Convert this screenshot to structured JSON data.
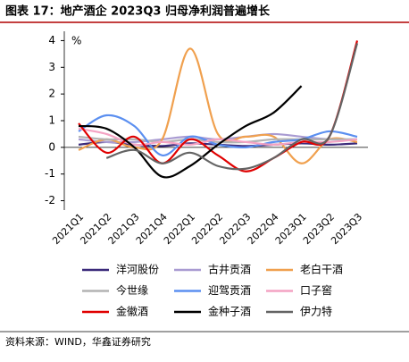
{
  "chart_data": {
    "type": "line",
    "title": "图表 17：地产酒企 2023Q3 归母净利润普遍增长",
    "unit_label": "%",
    "source": "资料来源：WIND，华鑫证券研究",
    "categories": [
      "2021Q1",
      "2021Q2",
      "2021Q3",
      "2021Q4",
      "2022Q1",
      "2022Q2",
      "2022Q3",
      "2022Q4",
      "2023Q1",
      "2023Q2",
      "2023Q3"
    ],
    "ylim": [
      -2.35,
      4.35
    ],
    "yticks": [
      -2,
      -1,
      0,
      1,
      2,
      3,
      4
    ],
    "series": [
      {
        "name": "洋河股份",
        "color": "#3b2a7a",
        "values": [
          0.1,
          0.2,
          0.1,
          0.05,
          0.15,
          0.1,
          0.05,
          0.1,
          0.15,
          0.1,
          0.15
        ]
      },
      {
        "name": "古井贡酒",
        "color": "#a99bd2",
        "values": [
          0.3,
          0.2,
          0.2,
          0.3,
          0.4,
          0.3,
          0.4,
          0.5,
          0.4,
          0.3,
          0.3
        ]
      },
      {
        "name": "老白干酒",
        "color": "#f0a04e",
        "values": [
          -0.1,
          0.3,
          0.0,
          0.3,
          3.7,
          0.5,
          0.4,
          0.4,
          -0.6,
          0.3,
          0.2
        ]
      },
      {
        "name": "今世缘",
        "color": "#b3b3b3",
        "values": [
          0.4,
          0.3,
          0.3,
          0.2,
          0.3,
          0.2,
          0.2,
          0.3,
          0.3,
          0.3,
          0.3
        ]
      },
      {
        "name": "迎驾贡酒",
        "color": "#5b8ff0",
        "values": [
          0.6,
          1.2,
          0.8,
          -0.3,
          0.4,
          0.1,
          0.0,
          0.2,
          0.3,
          0.6,
          0.4
        ]
      },
      {
        "name": "口子窖",
        "color": "#f4a3c3",
        "values": [
          0.7,
          0.5,
          0.1,
          0.2,
          0.1,
          0.3,
          0.2,
          0.1,
          0.2,
          0.2,
          0.3
        ]
      },
      {
        "name": "金徽酒",
        "color": "#e00000",
        "values": [
          0.9,
          -0.2,
          0.4,
          -0.6,
          0.3,
          -0.3,
          -0.9,
          -0.4,
          0.2,
          0.4,
          4.0
        ]
      },
      {
        "name": "金种子酒",
        "color": "#000000",
        "values": [
          0.8,
          0.7,
          0.0,
          -1.1,
          -0.7,
          0.1,
          0.8,
          1.3,
          2.3,
          null,
          null
        ]
      },
      {
        "name": "伊力特",
        "color": "#646464",
        "values": [
          null,
          -0.4,
          -0.1,
          -0.6,
          -0.2,
          -0.7,
          -0.8,
          -0.4,
          0.3,
          0.4,
          3.9
        ]
      }
    ]
  }
}
